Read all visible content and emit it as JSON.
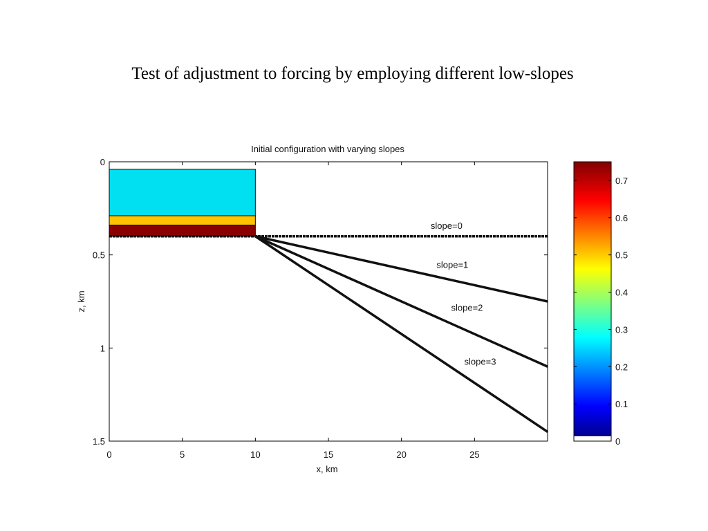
{
  "slide": {
    "title": "Test of adjustment to forcing by employing different low-slopes"
  },
  "chart_data": {
    "type": "line",
    "title": "Initial configuration with varying slopes",
    "xlabel": "x, km",
    "ylabel": "z, km",
    "xlim": [
      0,
      30
    ],
    "ylim": [
      0,
      1.5
    ],
    "y_reversed": true,
    "grid": false,
    "xticks": [
      "0",
      "5",
      "10",
      "15",
      "20",
      "25"
    ],
    "xtick_values": [
      0,
      5,
      10,
      15,
      20,
      25
    ],
    "yticks": [
      "0",
      "0.5",
      "1",
      "1.5"
    ],
    "ytick_values": [
      0,
      0.5,
      1,
      1.5
    ],
    "series": [
      {
        "name": "slope=0",
        "x": [
          0,
          30
        ],
        "y": [
          0.4,
          0.4
        ],
        "label_at": [
          22,
          0.36
        ]
      },
      {
        "name": "slope=1",
        "x": [
          10,
          30
        ],
        "y": [
          0.4,
          0.75
        ],
        "label_at": [
          22.4,
          0.57
        ]
      },
      {
        "name": "slope=2",
        "x": [
          10,
          30
        ],
        "y": [
          0.4,
          1.1
        ],
        "label_at": [
          23.4,
          0.8
        ]
      },
      {
        "name": "slope=3",
        "x": [
          10,
          30
        ],
        "y": [
          0.4,
          1.45
        ],
        "label_at": [
          24.3,
          1.09
        ]
      }
    ],
    "layers": [
      {
        "x0": 0,
        "x1": 10,
        "z0": 0.04,
        "z1": 0.29,
        "color": "#00e0f0"
      },
      {
        "x0": 0,
        "x1": 10,
        "z0": 0.29,
        "z1": 0.34,
        "color": "#ffc400"
      },
      {
        "x0": 0,
        "x1": 10,
        "z0": 0.34,
        "z1": 0.4,
        "color": "#8a0000"
      }
    ],
    "colorbar": {
      "range": [
        0,
        0.75
      ],
      "ticks": [
        "0",
        "0.1",
        "0.2",
        "0.3",
        "0.4",
        "0.5",
        "0.6",
        "0.7"
      ],
      "tick_values": [
        0,
        0.1,
        0.2,
        0.3,
        0.4,
        0.5,
        0.6,
        0.7
      ],
      "colormap": "jet"
    }
  }
}
